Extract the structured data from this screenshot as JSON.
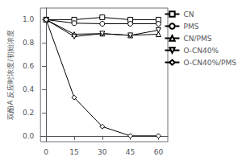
{
  "chart_data": {
    "type": "line",
    "x": [
      0,
      15,
      30,
      45,
      60
    ],
    "series": [
      {
        "name": "CN",
        "marker": "square",
        "values": [
          1.0,
          1.0,
          1.02,
          1.0,
          1.0
        ]
      },
      {
        "name": "PMS",
        "marker": "circle",
        "values": [
          1.0,
          0.97,
          0.965,
          0.965,
          0.965
        ]
      },
      {
        "name": "CN/PMS",
        "marker": "triangle-up",
        "values": [
          1.0,
          0.875,
          0.88,
          0.865,
          0.875
        ]
      },
      {
        "name": "O-CN40%",
        "marker": "triangle-down",
        "values": [
          1.0,
          0.855,
          0.88,
          0.865,
          0.91
        ]
      },
      {
        "name": "O-CN40%/PMS",
        "marker": "diamond",
        "values": [
          1.0,
          0.33,
          0.08,
          0.0,
          0.0
        ]
      }
    ],
    "color": "#000000",
    "ylabel": "双酚A 反应时浓度/初始浓度",
    "xlim": [
      -3,
      65
    ],
    "xticks": [
      0,
      15,
      30,
      45,
      60
    ],
    "ylim": [
      -0.05,
      1.1
    ],
    "yticks": [
      {
        "value": 0.0,
        "label": "0.0"
      },
      0.2,
      0.4,
      0.6,
      0.8,
      {
        "value": 1.0,
        "label": "1.0"
      }
    ],
    "grid": false,
    "legend": "upper right"
  }
}
